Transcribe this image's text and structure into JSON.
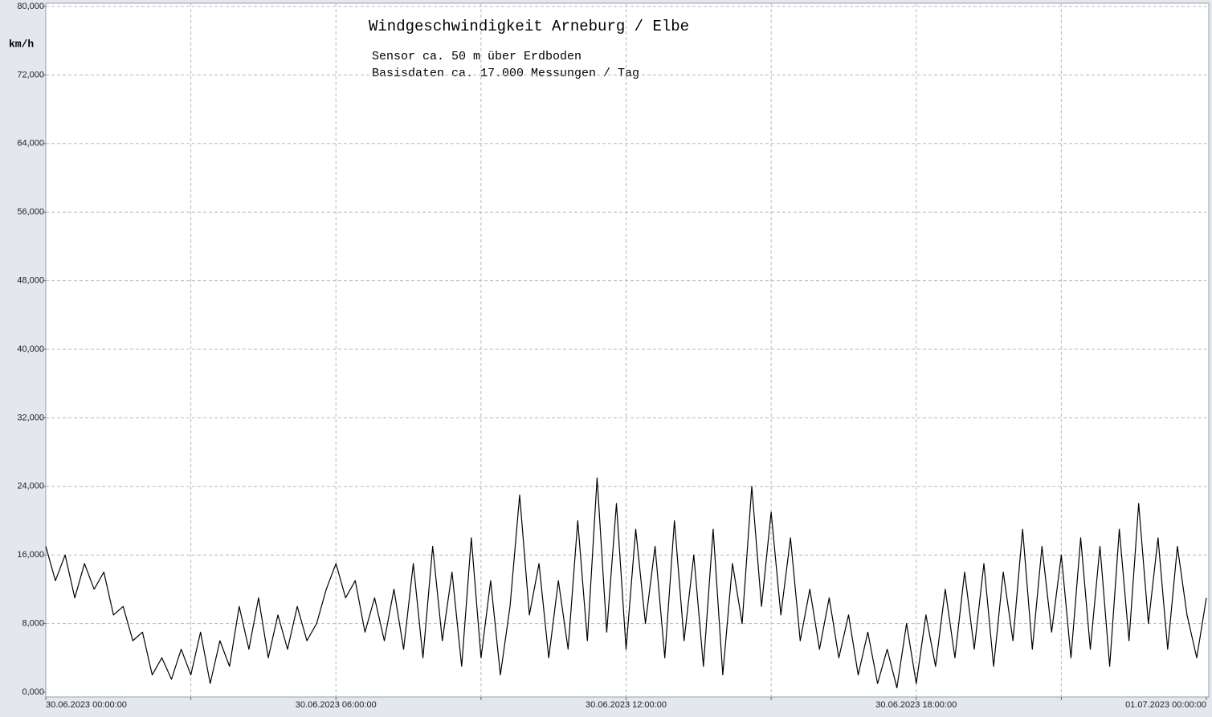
{
  "chart_data": {
    "type": "line",
    "title": "Windgeschwindigkeit  Arneburg / Elbe",
    "subtitle": [
      "Sensor ca. 50 m über Erdboden",
      "Basisdaten ca. 17.000 Messungen / Tag"
    ],
    "y_label": "km/h",
    "color": "#000000",
    "grid": true,
    "xlim": [
      0,
      24
    ],
    "xticks": [
      {
        "value": 0,
        "label": "30.06.2023  00:00:00"
      },
      {
        "value": 3,
        "label": null
      },
      {
        "value": 6,
        "label": "30.06.2023  06:00:00"
      },
      {
        "value": 9,
        "label": null
      },
      {
        "value": 12,
        "label": "30.06.2023  12:00:00"
      },
      {
        "value": 15,
        "label": null
      },
      {
        "value": 18,
        "label": "30.06.2023  18:00:00"
      },
      {
        "value": 21,
        "label": null
      },
      {
        "value": 24,
        "label": "01.07.2023  00:00:00"
      }
    ],
    "ylim": [
      0,
      80
    ],
    "yticks": [
      {
        "value": 0,
        "label": "0,000"
      },
      {
        "value": 8,
        "label": "8,000"
      },
      {
        "value": 16,
        "label": "16,000"
      },
      {
        "value": 24,
        "label": "24,000"
      },
      {
        "value": 32,
        "label": "32,000"
      },
      {
        "value": 40,
        "label": "40,000"
      },
      {
        "value": 48,
        "label": "48,000"
      },
      {
        "value": 56,
        "label": "56,000"
      },
      {
        "value": 64,
        "label": "64,000"
      },
      {
        "value": 72,
        "label": "72,000"
      },
      {
        "value": 80,
        "label": "80,000"
      }
    ],
    "x": [
      0,
      0.2,
      0.4,
      0.6,
      0.8,
      1,
      1.2,
      1.4,
      1.6,
      1.8,
      2,
      2.2,
      2.4,
      2.6,
      2.8,
      3,
      3.2,
      3.4,
      3.6,
      3.8,
      4,
      4.2,
      4.4,
      4.6,
      4.8,
      5,
      5.2,
      5.4,
      5.6,
      5.8,
      6,
      6.2,
      6.4,
      6.6,
      6.8,
      7,
      7.2,
      7.4,
      7.6,
      7.8,
      8,
      8.2,
      8.4,
      8.6,
      8.8,
      9,
      9.2,
      9.4,
      9.6,
      9.8,
      10,
      10.2,
      10.4,
      10.6,
      10.8,
      11,
      11.2,
      11.4,
      11.6,
      11.8,
      12,
      12.2,
      12.4,
      12.6,
      12.8,
      13,
      13.2,
      13.4,
      13.6,
      13.8,
      14,
      14.2,
      14.4,
      14.6,
      14.8,
      15,
      15.2,
      15.4,
      15.6,
      15.8,
      16,
      16.2,
      16.4,
      16.6,
      16.8,
      17,
      17.2,
      17.4,
      17.6,
      17.8,
      18,
      18.2,
      18.4,
      18.6,
      18.8,
      19,
      19.2,
      19.4,
      19.6,
      19.8,
      20,
      20.2,
      20.4,
      20.6,
      20.8,
      21,
      21.2,
      21.4,
      21.6,
      21.8,
      22,
      22.2,
      22.4,
      22.6,
      22.8,
      23,
      23.2,
      23.4,
      23.6,
      23.8,
      24
    ],
    "values": [
      17,
      13,
      16,
      11,
      15,
      12,
      14,
      9,
      10,
      6,
      7,
      2,
      4,
      1.5,
      5,
      2,
      7,
      1,
      6,
      3,
      10,
      5,
      11,
      4,
      9,
      5,
      10,
      6,
      8,
      12,
      15,
      11,
      13,
      7,
      11,
      6,
      12,
      5,
      15,
      4,
      17,
      6,
      14,
      3,
      18,
      4,
      13,
      2,
      10,
      23,
      9,
      15,
      4,
      13,
      5,
      20,
      6,
      25,
      7,
      22,
      5,
      19,
      8,
      17,
      4,
      20,
      6,
      16,
      3,
      19,
      2,
      15,
      8,
      24,
      10,
      21,
      9,
      18,
      6,
      12,
      5,
      11,
      4,
      9,
      2,
      7,
      1,
      5,
      0.5,
      8,
      1,
      9,
      3,
      12,
      4,
      14,
      5,
      15,
      3,
      14,
      6,
      19,
      5,
      17,
      7,
      16,
      4,
      18,
      5,
      17,
      3,
      19,
      6,
      22,
      8,
      18,
      5,
      17,
      9,
      4,
      11
    ]
  }
}
